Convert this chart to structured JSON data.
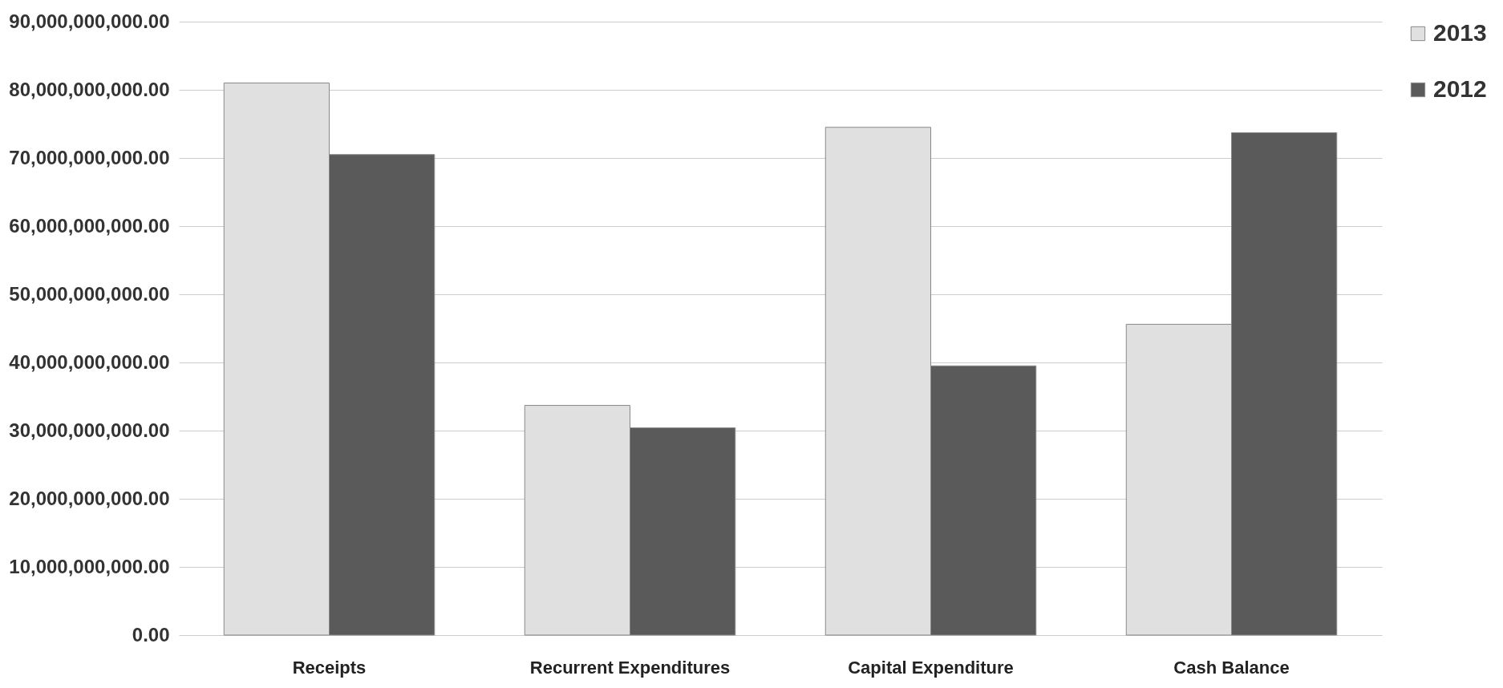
{
  "chart_data": {
    "type": "bar",
    "categories": [
      "Receipts",
      "Recurrent Expenditures",
      "Capital Expenditure",
      "Cash Balance"
    ],
    "series": [
      {
        "name": "2013",
        "color": "#e0e0e0",
        "values": [
          81000000000,
          33700000000,
          74500000000,
          45600000000
        ]
      },
      {
        "name": "2012",
        "color": "#5a5a5a",
        "values": [
          70500000000,
          30400000000,
          39500000000,
          73700000000
        ]
      }
    ],
    "ylim": [
      0,
      90000000000
    ],
    "yticks": [
      {
        "value": 0,
        "label": "0.00"
      },
      {
        "value": 10000000000,
        "label": "10,000,000,000.00"
      },
      {
        "value": 20000000000,
        "label": "20,000,000,000.00"
      },
      {
        "value": 30000000000,
        "label": "30,000,000,000.00"
      },
      {
        "value": 40000000000,
        "label": "40,000,000,000.00"
      },
      {
        "value": 50000000000,
        "label": "50,000,000,000.00"
      },
      {
        "value": 60000000000,
        "label": "60,000,000,000.00"
      },
      {
        "value": 70000000000,
        "label": "70,000,000,000.00"
      },
      {
        "value": 80000000000,
        "label": "80,000,000,000.00"
      },
      {
        "value": 90000000000,
        "label": "90,000,000,000.00"
      }
    ],
    "grid": "y",
    "legend": "right"
  }
}
